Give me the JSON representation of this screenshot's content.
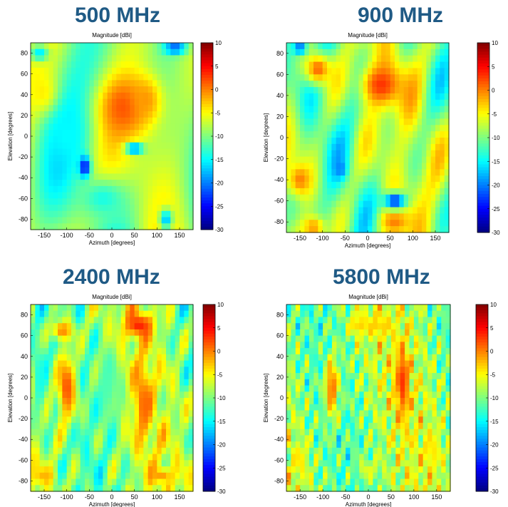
{
  "chart_data": [
    {
      "type": "heatmap",
      "title": "500 MHz",
      "subtitle": "Magnitude [dBi]",
      "xlabel": "Azimuth [degrees]",
      "ylabel": "Elevation [degrees]",
      "xlim": [
        -180,
        180
      ],
      "ylim": [
        -90,
        90
      ],
      "xticks": [
        -150,
        -100,
        -50,
        0,
        50,
        100,
        150
      ],
      "yticks": [
        -80,
        -60,
        -40,
        -20,
        0,
        20,
        40,
        60,
        80
      ],
      "colorbar": {
        "range": [
          -30,
          10
        ],
        "ticks": [
          10,
          5,
          0,
          -5,
          -10,
          -15,
          -20,
          -25,
          -30
        ],
        "colormap": "jet"
      },
      "complexity": 1,
      "features": [
        {
          "az": 30,
          "el": 28,
          "value": 2,
          "spread_az": 55,
          "spread_el": 28
        },
        {
          "az": 75,
          "el": 35,
          "value": -1,
          "spread_az": 35,
          "spread_el": 22
        },
        {
          "az": -150,
          "el": 40,
          "value": -4,
          "spread_az": 30,
          "spread_el": 20
        },
        {
          "az": -100,
          "el": 0,
          "value": -15,
          "spread_az": 45,
          "spread_el": 30
        },
        {
          "az": -60,
          "el": -30,
          "value": -26,
          "spread_az": 12,
          "spread_el": 10
        },
        {
          "az": 50,
          "el": -12,
          "value": -22,
          "spread_az": 20,
          "spread_el": 5
        },
        {
          "az": -20,
          "el": -60,
          "value": -14,
          "spread_az": 50,
          "spread_el": 18
        },
        {
          "az": 120,
          "el": -80,
          "value": -18,
          "spread_az": 15,
          "spread_el": 10
        },
        {
          "az": 140,
          "el": 85,
          "value": -22,
          "spread_az": 25,
          "spread_el": 6
        },
        {
          "az": -160,
          "el": 80,
          "value": -16,
          "spread_az": 20,
          "spread_el": 8
        }
      ]
    },
    {
      "type": "heatmap",
      "title": "900 MHz",
      "subtitle": "Magnitude [dBi]",
      "xlabel": "Azimuth [degrees]",
      "ylabel": "Elevation [degrees]",
      "xlim": [
        -180,
        180
      ],
      "ylim": [
        -90,
        90
      ],
      "xticks": [
        -150,
        -100,
        -50,
        0,
        50,
        100,
        150
      ],
      "yticks": [
        -80,
        -60,
        -40,
        -20,
        0,
        20,
        40,
        60,
        80
      ],
      "colorbar": {
        "range": [
          -30,
          10
        ],
        "ticks": [
          10,
          5,
          0,
          -5,
          -10,
          -15,
          -20,
          -25,
          -30
        ],
        "colormap": "jet"
      },
      "complexity": 2,
      "features": [
        {
          "az": 30,
          "el": 50,
          "value": 3,
          "spread_az": 45,
          "spread_el": 20
        },
        {
          "az": -110,
          "el": 65,
          "value": 1,
          "spread_az": 30,
          "spread_el": 15
        },
        {
          "az": -150,
          "el": -40,
          "value": 0,
          "spread_az": 25,
          "spread_el": 15
        },
        {
          "az": 60,
          "el": -80,
          "value": 0,
          "spread_az": 30,
          "spread_el": 12
        },
        {
          "az": -120,
          "el": -85,
          "value": -1,
          "spread_az": 25,
          "spread_el": 10
        },
        {
          "az": 60,
          "el": -60,
          "value": -24,
          "spread_az": 25,
          "spread_el": 8
        },
        {
          "az": -150,
          "el": 85,
          "value": -22,
          "spread_az": 15,
          "spread_el": 6
        },
        {
          "az": -60,
          "el": -30,
          "value": -20,
          "spread_az": 12,
          "spread_el": 8
        }
      ]
    },
    {
      "type": "heatmap",
      "title": "2400 MHz",
      "subtitle": "Magnitude [dBi]",
      "xlabel": "Azimuth [degrees]",
      "ylabel": "Elevation [degrees]",
      "xlim": [
        -180,
        180
      ],
      "ylim": [
        -90,
        90
      ],
      "xticks": [
        -150,
        -100,
        -50,
        0,
        50,
        100,
        150
      ],
      "yticks": [
        -80,
        -60,
        -40,
        -20,
        0,
        20,
        40,
        60,
        80
      ],
      "colorbar": {
        "range": [
          -30,
          10
        ],
        "ticks": [
          10,
          5,
          0,
          -5,
          -10,
          -15,
          -20,
          -25,
          -30
        ],
        "colormap": "jet"
      },
      "complexity": 4,
      "features": [
        {
          "az": -100,
          "el": 10,
          "value": 2,
          "spread_az": 22,
          "spread_el": 35
        },
        {
          "az": 60,
          "el": 70,
          "value": 4,
          "spread_az": 30,
          "spread_el": 12
        },
        {
          "az": 70,
          "el": -5,
          "value": 1,
          "spread_az": 20,
          "spread_el": 40
        },
        {
          "az": -110,
          "el": 65,
          "value": 0,
          "spread_az": 25,
          "spread_el": 10
        },
        {
          "az": -150,
          "el": -75,
          "value": -2,
          "spread_az": 25,
          "spread_el": 8
        },
        {
          "az": 110,
          "el": -75,
          "value": -1,
          "spread_az": 25,
          "spread_el": 8
        },
        {
          "az": -10,
          "el": 10,
          "value": -12,
          "spread_az": 30,
          "spread_el": 45
        },
        {
          "az": -160,
          "el": 20,
          "value": -14,
          "spread_az": 15,
          "spread_el": 40
        }
      ]
    },
    {
      "type": "heatmap",
      "title": "5800 MHz",
      "subtitle": "Magnitude [dBi]",
      "xlabel": "Azimuth [degrees]",
      "ylabel": "Elevation [degrees]",
      "xlim": [
        -180,
        180
      ],
      "ylim": [
        -90,
        90
      ],
      "xticks": [
        -150,
        -100,
        -50,
        0,
        50,
        100,
        150
      ],
      "yticks": [
        -80,
        -60,
        -40,
        -20,
        0,
        20,
        40,
        60,
        80
      ],
      "colorbar": {
        "range": [
          -30,
          10
        ],
        "ticks": [
          10,
          5,
          0,
          -5,
          -10,
          -15,
          -20,
          -25,
          -30
        ],
        "colormap": "jet"
      },
      "complexity": 7,
      "features": [
        {
          "az": -80,
          "el": 10,
          "value": 1,
          "spread_az": 15,
          "spread_el": 30
        },
        {
          "az": 75,
          "el": 15,
          "value": 3,
          "spread_az": 15,
          "spread_el": 35
        },
        {
          "az": -20,
          "el": 70,
          "value": -3,
          "spread_az": 20,
          "spread_el": 10
        },
        {
          "az": 20,
          "el": 70,
          "value": -3,
          "spread_az": 20,
          "spread_el": 10
        },
        {
          "az": -150,
          "el": -60,
          "value": -4,
          "spread_az": 15,
          "spread_el": 15
        },
        {
          "az": 140,
          "el": -50,
          "value": -4,
          "spread_az": 15,
          "spread_el": 20
        },
        {
          "az": 0,
          "el": -70,
          "value": -6,
          "spread_az": 25,
          "spread_el": 10
        }
      ]
    }
  ]
}
